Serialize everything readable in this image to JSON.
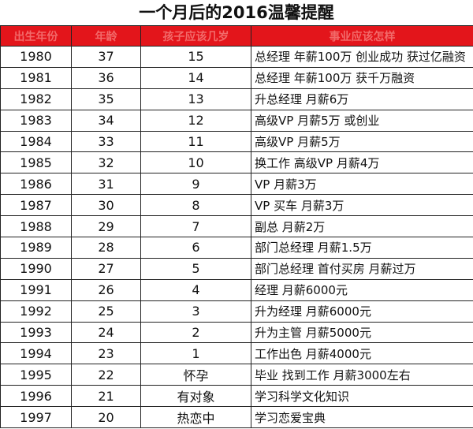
{
  "title": "一个月后的2016温馨提醒",
  "table": {
    "header": [
      "出生年份",
      "年龄",
      "孩子应该几岁",
      "事业应该怎样"
    ],
    "rows": [
      [
        1980,
        37,
        15,
        "总经理 年薪100万 创业成功 获过亿融资"
      ],
      [
        1981,
        36,
        14,
        "总经理 年薪100万 获千万融资"
      ],
      [
        1982,
        35,
        13,
        "升总经理 月薪6万"
      ],
      [
        1983,
        34,
        12,
        "高级VP 月薪5万 或创业"
      ],
      [
        1984,
        33,
        11,
        "高级VP 月薪5万"
      ],
      [
        1985,
        32,
        10,
        "换工作 高级VP 月薪4万"
      ],
      [
        1986,
        31,
        9,
        "VP 月薪3万"
      ],
      [
        1987,
        30,
        8,
        "VP 买车 月薪3万"
      ],
      [
        1988,
        29,
        7,
        "副总 月薪2万"
      ],
      [
        1989,
        28,
        6,
        "部门总经理 月薪1.5万"
      ],
      [
        1990,
        27,
        5,
        "部门总经理 首付买房 月薪过万"
      ],
      [
        1991,
        26,
        4,
        "经理 月薪6000元"
      ],
      [
        1992,
        25,
        3,
        "升为经理 月薪6000元"
      ],
      [
        1993,
        24,
        2,
        "升为主管 月薪5000元"
      ],
      [
        1994,
        23,
        1,
        "工作出色 月薪4000元"
      ],
      [
        1995,
        22,
        "怀孕",
        "毕业 找到工作 月薪3000左右"
      ],
      [
        1996,
        21,
        "有对象",
        "学习科学文化知识"
      ],
      [
        1997,
        20,
        "热恋中",
        "学习恋爱宝典"
      ]
    ]
  }
}
